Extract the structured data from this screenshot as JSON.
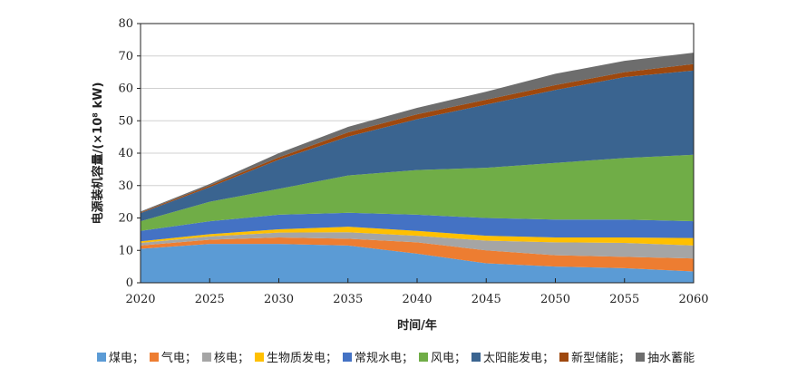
{
  "chart_data": {
    "type": "area",
    "stacked": true,
    "xlabel": "时间/年",
    "ylabel": "电源装机容量/(×10⁸ kW)",
    "x": [
      2020,
      2025,
      2030,
      2035,
      2040,
      2045,
      2050,
      2055,
      2060
    ],
    "xlim": [
      2020,
      2060
    ],
    "ylim": [
      0,
      80
    ],
    "yticks": [
      0,
      10,
      20,
      30,
      40,
      50,
      60,
      70,
      80
    ],
    "grid": true,
    "legend_position": "bottom",
    "series": [
      {
        "name": "煤电",
        "color": "#5b9bd5",
        "values": [
          10.5,
          12,
          12,
          11.5,
          9,
          6,
          5,
          4.5,
          3.5
        ]
      },
      {
        "name": "气电",
        "color": "#ed7d31",
        "values": [
          1,
          1.3,
          2,
          2.1,
          3.5,
          4,
          3.5,
          3.5,
          4
        ]
      },
      {
        "name": "核电",
        "color": "#a5a5a5",
        "values": [
          0.8,
          1,
          1.5,
          2,
          2,
          3,
          4,
          4.3,
          4
        ]
      },
      {
        "name": "生物质发电",
        "color": "#ffc000",
        "values": [
          0.5,
          0.7,
          1,
          1.7,
          1.5,
          1.5,
          1.5,
          1.7,
          2.3
        ]
      },
      {
        "name": "常规水电",
        "color": "#4472c4",
        "values": [
          3.2,
          4,
          4.5,
          4.3,
          5,
          5.5,
          5.5,
          5.5,
          5.2
        ]
      },
      {
        "name": "风电",
        "color": "#70ad47",
        "values": [
          3,
          6,
          8,
          11.5,
          13.8,
          15.5,
          17.5,
          19,
          20.5
        ]
      },
      {
        "name": "太阳能发电",
        "color": "#3a6490",
        "values": [
          2.5,
          4.5,
          9,
          12,
          15.7,
          19.5,
          22.5,
          25,
          26
        ]
      },
      {
        "name": "新型储能",
        "color": "#9e480e",
        "values": [
          0.2,
          0.5,
          0.7,
          1.3,
          1.5,
          1.5,
          1.5,
          1.5,
          2
        ]
      },
      {
        "name": "抽水蓄能",
        "color": "#6d6d6d",
        "values": [
          0.3,
          0.5,
          1.3,
          1.7,
          2,
          2.5,
          3.5,
          3.5,
          3.5
        ]
      }
    ]
  }
}
